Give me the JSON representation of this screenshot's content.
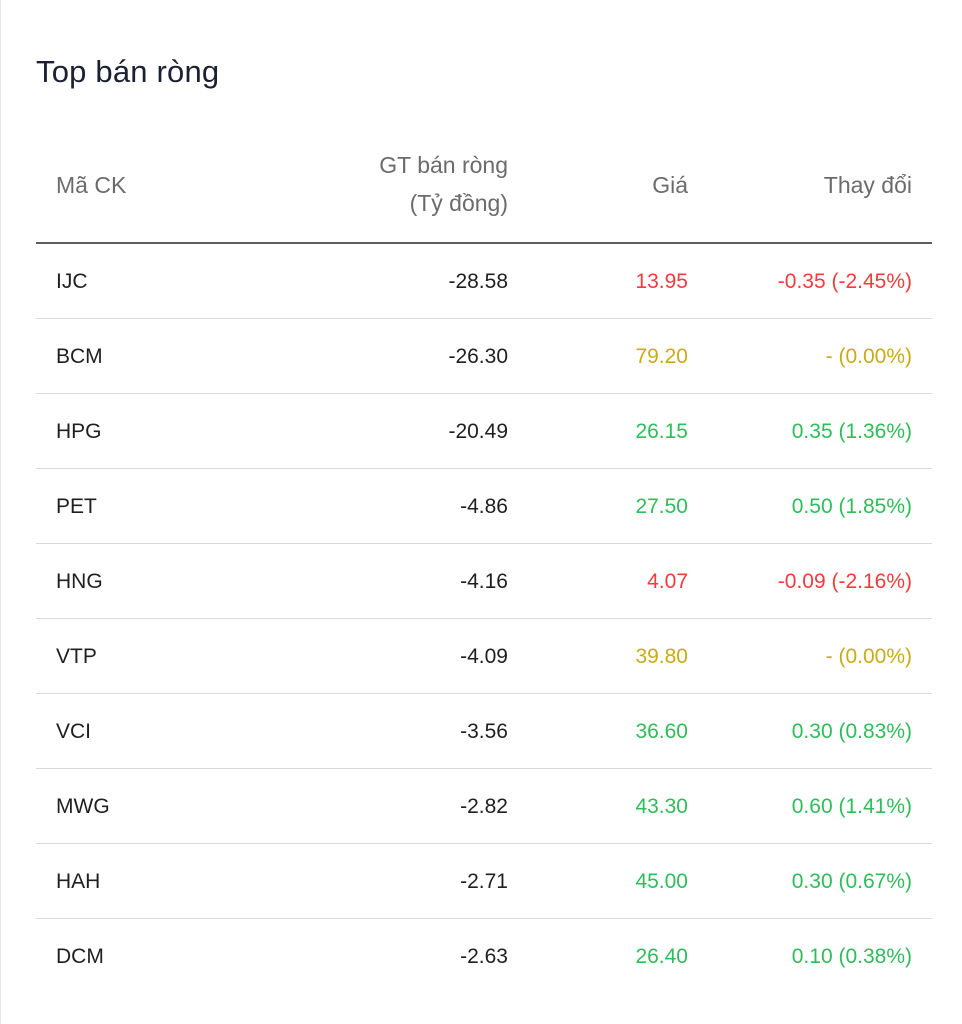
{
  "title": "Top bán ròng",
  "columns": {
    "code": "Mã CK",
    "net_line1": "GT bán ròng",
    "net_line2": "(Tỷ đồng)",
    "price": "Giá",
    "change": "Thay đổi"
  },
  "colors": {
    "up": "#2ebd59",
    "down": "#f23b3b",
    "reference": "#c9ab16"
  },
  "rows": [
    {
      "code": "IJC",
      "net": "-28.58",
      "price": "13.95",
      "change": "-0.35 (-2.45%)",
      "status": "down"
    },
    {
      "code": "BCM",
      "net": "-26.30",
      "price": "79.20",
      "change": "- (0.00%)",
      "status": "ref"
    },
    {
      "code": "HPG",
      "net": "-20.49",
      "price": "26.15",
      "change": "0.35 (1.36%)",
      "status": "up"
    },
    {
      "code": "PET",
      "net": "-4.86",
      "price": "27.50",
      "change": "0.50 (1.85%)",
      "status": "up"
    },
    {
      "code": "HNG",
      "net": "-4.16",
      "price": "4.07",
      "change": "-0.09 (-2.16%)",
      "status": "down"
    },
    {
      "code": "VTP",
      "net": "-4.09",
      "price": "39.80",
      "change": "- (0.00%)",
      "status": "ref"
    },
    {
      "code": "VCI",
      "net": "-3.56",
      "price": "36.60",
      "change": "0.30 (0.83%)",
      "status": "up"
    },
    {
      "code": "MWG",
      "net": "-2.82",
      "price": "43.30",
      "change": "0.60 (1.41%)",
      "status": "up"
    },
    {
      "code": "HAH",
      "net": "-2.71",
      "price": "45.00",
      "change": "0.30 (0.67%)",
      "status": "up"
    },
    {
      "code": "DCM",
      "net": "-2.63",
      "price": "26.40",
      "change": "0.10 (0.38%)",
      "status": "up"
    }
  ]
}
